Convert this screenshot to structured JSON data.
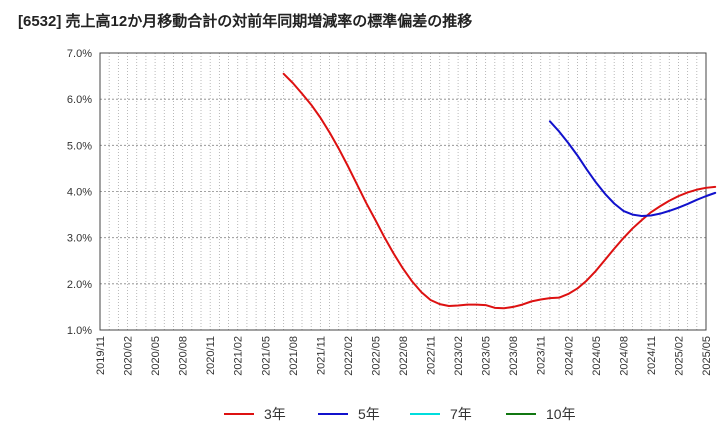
{
  "chart_data": {
    "type": "line",
    "title": "[6532]  売上高12か月移動合計の対前年同期増減率の標準偏差の推移",
    "xlabel": "",
    "ylabel": "",
    "ylim": [
      1.0,
      7.0
    ],
    "y_ticks": [
      "1.0%",
      "2.0%",
      "3.0%",
      "4.0%",
      "5.0%",
      "6.0%",
      "7.0%"
    ],
    "x_ticks": [
      "2019/11",
      "2020/02",
      "2020/05",
      "2020/08",
      "2020/11",
      "2021/02",
      "2021/05",
      "2021/08",
      "2021/11",
      "2022/02",
      "2022/05",
      "2022/08",
      "2022/11",
      "2023/02",
      "2023/05",
      "2023/08",
      "2023/11",
      "2024/02",
      "2024/05",
      "2024/08",
      "2024/11",
      "2025/02",
      "2025/05"
    ],
    "grid": true,
    "legend_position": "bottom",
    "series": [
      {
        "name": "3年",
        "color": "#dd1111",
        "points": [
          [
            "2021/07",
            6.55
          ],
          [
            "2021/08",
            6.35
          ],
          [
            "2021/09",
            6.12
          ],
          [
            "2021/10",
            5.88
          ],
          [
            "2021/11",
            5.6
          ],
          [
            "2021/12",
            5.28
          ],
          [
            "2022/01",
            4.93
          ],
          [
            "2022/02",
            4.55
          ],
          [
            "2022/03",
            4.15
          ],
          [
            "2022/04",
            3.75
          ],
          [
            "2022/05",
            3.38
          ],
          [
            "2022/06",
            3.0
          ],
          [
            "2022/07",
            2.65
          ],
          [
            "2022/08",
            2.33
          ],
          [
            "2022/09",
            2.05
          ],
          [
            "2022/10",
            1.82
          ],
          [
            "2022/11",
            1.65
          ],
          [
            "2022/12",
            1.56
          ],
          [
            "2023/01",
            1.52
          ],
          [
            "2023/02",
            1.53
          ],
          [
            "2023/03",
            1.55
          ],
          [
            "2023/04",
            1.55
          ],
          [
            "2023/05",
            1.54
          ],
          [
            "2023/06",
            1.48
          ],
          [
            "2023/07",
            1.47
          ],
          [
            "2023/08",
            1.5
          ],
          [
            "2023/09",
            1.55
          ],
          [
            "2023/10",
            1.62
          ],
          [
            "2023/11",
            1.66
          ],
          [
            "2023/12",
            1.69
          ],
          [
            "2024/01",
            1.7
          ],
          [
            "2024/02",
            1.78
          ],
          [
            "2024/03",
            1.9
          ],
          [
            "2024/04",
            2.07
          ],
          [
            "2024/05",
            2.28
          ],
          [
            "2024/06",
            2.52
          ],
          [
            "2024/07",
            2.76
          ],
          [
            "2024/08",
            2.99
          ],
          [
            "2024/09",
            3.2
          ],
          [
            "2024/10",
            3.38
          ],
          [
            "2024/11",
            3.55
          ],
          [
            "2024/12",
            3.68
          ],
          [
            "2025/01",
            3.8
          ],
          [
            "2025/02",
            3.9
          ],
          [
            "2025/03",
            3.98
          ],
          [
            "2025/04",
            4.04
          ],
          [
            "2025/05",
            4.08
          ],
          [
            "2025/06",
            4.1
          ]
        ]
      },
      {
        "name": "5年",
        "color": "#1111cc",
        "points": [
          [
            "2023/12",
            5.52
          ],
          [
            "2024/01",
            5.3
          ],
          [
            "2024/02",
            5.05
          ],
          [
            "2024/03",
            4.78
          ],
          [
            "2024/04",
            4.48
          ],
          [
            "2024/05",
            4.2
          ],
          [
            "2024/06",
            3.95
          ],
          [
            "2024/07",
            3.74
          ],
          [
            "2024/08",
            3.58
          ],
          [
            "2024/09",
            3.5
          ],
          [
            "2024/10",
            3.47
          ],
          [
            "2024/11",
            3.48
          ],
          [
            "2024/12",
            3.52
          ],
          [
            "2025/01",
            3.58
          ],
          [
            "2025/02",
            3.65
          ],
          [
            "2025/03",
            3.73
          ],
          [
            "2025/04",
            3.82
          ],
          [
            "2025/05",
            3.9
          ],
          [
            "2025/06",
            3.97
          ]
        ]
      },
      {
        "name": "7年",
        "color": "#00dddd",
        "points": []
      },
      {
        "name": "10年",
        "color": "#117711",
        "points": []
      }
    ]
  }
}
